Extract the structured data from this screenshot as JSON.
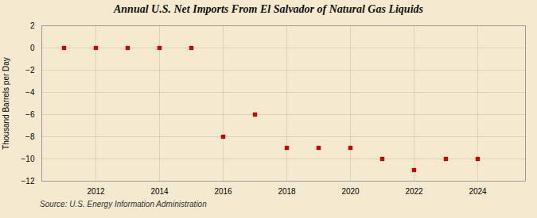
{
  "chart_data": {
    "type": "scatter",
    "title": "Annual U.S. Net Imports From El Salvador of Natural Gas Liquids",
    "ylabel": "Thousand Barrels per Day",
    "annotations": [
      "Source: U.S. Energy Information Administration"
    ],
    "x": [
      2011,
      2012,
      2013,
      2014,
      2015,
      2016,
      2017,
      2018,
      2019,
      2020,
      2021,
      2022,
      2023,
      2024
    ],
    "values": [
      0,
      0,
      0,
      0,
      0,
      -8,
      -6,
      -9,
      -9,
      -9,
      -10,
      -11,
      -10,
      -10
    ],
    "color": "#cc0000",
    "marker": "square",
    "xlim": [
      2010.3,
      2025.5
    ],
    "xticks": [
      2012,
      2014,
      2016,
      2018,
      2020,
      2022,
      2024
    ],
    "ylim": [
      -12,
      2
    ],
    "yticks": [
      2,
      0,
      -2,
      -4,
      -6,
      -8,
      -10,
      -12
    ],
    "grid": true
  }
}
